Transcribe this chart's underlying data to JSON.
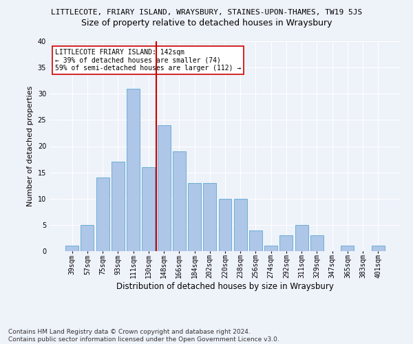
{
  "title1": "LITTLECOTE, FRIARY ISLAND, WRAYSBURY, STAINES-UPON-THAMES, TW19 5JS",
  "title2": "Size of property relative to detached houses in Wraysbury",
  "xlabel": "Distribution of detached houses by size in Wraysbury",
  "ylabel": "Number of detached properties",
  "categories": [
    "39sqm",
    "57sqm",
    "75sqm",
    "93sqm",
    "111sqm",
    "130sqm",
    "148sqm",
    "166sqm",
    "184sqm",
    "202sqm",
    "220sqm",
    "238sqm",
    "256sqm",
    "274sqm",
    "292sqm",
    "311sqm",
    "329sqm",
    "347sqm",
    "365sqm",
    "383sqm",
    "401sqm"
  ],
  "values": [
    1,
    5,
    14,
    17,
    31,
    16,
    24,
    19,
    13,
    13,
    10,
    10,
    4,
    1,
    3,
    5,
    3,
    0,
    1,
    0,
    1
  ],
  "bar_color": "#aec6e8",
  "bar_edge_color": "#6baed6",
  "vline_x": 5.5,
  "vline_color": "#cc0000",
  "annotation_text": "LITTLECOTE FRIARY ISLAND: 142sqm\n← 39% of detached houses are smaller (74)\n59% of semi-detached houses are larger (112) →",
  "annotation_box_color": "#ffffff",
  "annotation_box_edge": "#cc0000",
  "ylim": [
    0,
    40
  ],
  "yticks": [
    0,
    5,
    10,
    15,
    20,
    25,
    30,
    35,
    40
  ],
  "footer": "Contains HM Land Registry data © Crown copyright and database right 2024.\nContains public sector information licensed under the Open Government Licence v3.0.",
  "background_color": "#eef2f9",
  "plot_background": "#eef2f9",
  "title1_fontsize": 8,
  "title2_fontsize": 9,
  "xlabel_fontsize": 8.5,
  "ylabel_fontsize": 8,
  "footer_fontsize": 6.5,
  "tick_fontsize": 7
}
